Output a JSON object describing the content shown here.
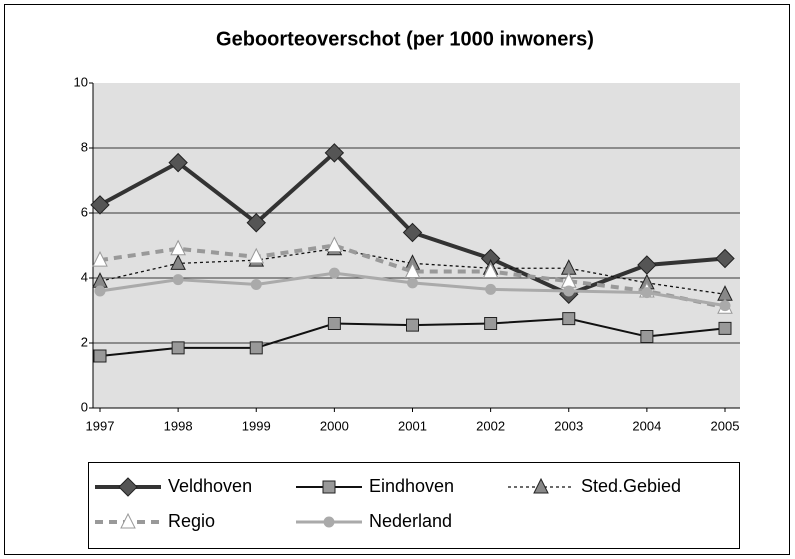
{
  "chart_data": {
    "type": "line",
    "title": "Geboorteoverschot (per 1000 inwoners)",
    "categories": [
      "1997",
      "1998",
      "1999",
      "2000",
      "2001",
      "2002",
      "2003",
      "2004",
      "2005"
    ],
    "ylim": [
      0,
      10
    ],
    "yticks": [
      0,
      2,
      4,
      6,
      8,
      10
    ],
    "grid": true,
    "series": [
      {
        "name": "Veldhoven",
        "color": "#333333",
        "marker": "diamond",
        "marker_fill": "#555555",
        "width": 4,
        "dash": "none",
        "values": [
          6.25,
          7.55,
          5.7,
          7.85,
          5.4,
          4.6,
          3.5,
          4.4,
          4.6
        ]
      },
      {
        "name": "Eindhoven",
        "color": "#111111",
        "marker": "square",
        "marker_fill": "#999999",
        "width": 2,
        "dash": "none",
        "values": [
          1.6,
          1.85,
          1.85,
          2.6,
          2.55,
          2.6,
          2.75,
          2.2,
          2.45
        ]
      },
      {
        "name": "Sted.Gebied",
        "color": "#111111",
        "marker": "triangle",
        "marker_fill": "#888888",
        "width": 1.3,
        "dash": "3 3",
        "values": [
          3.9,
          4.45,
          4.55,
          4.9,
          4.45,
          4.3,
          4.3,
          3.85,
          3.5
        ]
      },
      {
        "name": "Regio",
        "color": "#999999",
        "marker": "triangle",
        "marker_fill": "#ffffff",
        "width": 4,
        "dash": "8 6",
        "values": [
          4.55,
          4.9,
          4.65,
          5.0,
          4.2,
          4.2,
          3.9,
          3.6,
          3.1
        ]
      },
      {
        "name": "Nederland",
        "color": "#aaaaaa",
        "marker": "circle",
        "marker_fill": "#aaaaaa",
        "width": 3,
        "dash": "none",
        "values": [
          3.6,
          3.95,
          3.8,
          4.15,
          3.85,
          3.65,
          3.6,
          3.55,
          3.15
        ]
      }
    ]
  }
}
